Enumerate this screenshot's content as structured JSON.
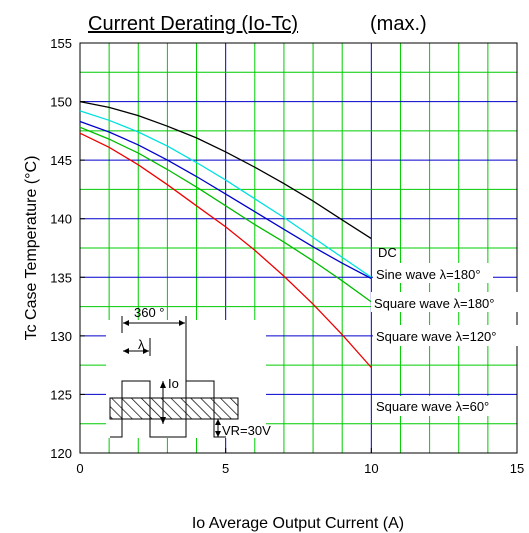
{
  "colors": {
    "background": "#ffffff",
    "grid_vertical": "#00cc00",
    "grid_horizontal": "#0000cc",
    "frame": "#000000",
    "hatch": "#000000"
  },
  "chart_data": {
    "type": "line",
    "title": "Current Derating  (Io-Tc)",
    "title_suffix": "(max.)",
    "xlabel": "Io   Average Output Current   (A)",
    "ylabel": "Tc   Case Temperature   (°C)",
    "xlim": [
      0,
      15
    ],
    "ylim": [
      120,
      155
    ],
    "x_ticks": [
      0,
      5,
      10,
      15
    ],
    "y_ticks": [
      120,
      125,
      130,
      135,
      140,
      145,
      150,
      155
    ],
    "grid": true,
    "series": [
      {
        "name": "DC",
        "color": "#000000",
        "x": [
          0,
          1,
          2,
          3,
          4,
          5,
          6,
          7,
          8,
          9,
          10
        ],
        "y": [
          150,
          149.5,
          148.8,
          147.9,
          146.9,
          145.7,
          144.4,
          143,
          141.5,
          139.9,
          138.3
        ]
      },
      {
        "name": "Sine wave λ=180°",
        "color": "#00e0e0",
        "x": [
          0,
          1,
          2,
          3,
          4,
          5,
          6,
          7,
          8,
          9,
          10
        ],
        "y": [
          149.2,
          148.4,
          147.4,
          146.2,
          144.8,
          143.3,
          141.7,
          140.1,
          138.4,
          136.7,
          135
        ]
      },
      {
        "name": "Square wave λ=180°",
        "color": "#0000cc",
        "x": [
          0,
          1,
          2,
          3,
          4,
          5,
          6,
          7,
          8,
          9,
          10
        ],
        "y": [
          148.3,
          147.4,
          146.3,
          145,
          143.6,
          142.1,
          140.6,
          139.1,
          137.6,
          136.2,
          134.9
        ]
      },
      {
        "name": "Square wave λ=120°",
        "color": "#00bb00",
        "x": [
          0,
          1,
          2,
          3,
          4,
          5,
          6,
          7,
          8,
          9,
          10
        ],
        "y": [
          147.8,
          146.8,
          145.6,
          144.2,
          142.7,
          141.1,
          139.5,
          138,
          136.4,
          134.7,
          132.9
        ]
      },
      {
        "name": "Square wave λ=60°",
        "color": "#ee0000",
        "x": [
          0,
          1,
          2,
          3,
          4,
          5,
          6,
          7,
          8,
          9,
          10
        ],
        "y": [
          147.3,
          146.1,
          144.6,
          142.9,
          141.1,
          139.3,
          137.3,
          135.1,
          132.7,
          130.1,
          127.3
        ]
      }
    ],
    "inset": {
      "angle_label": "360 °",
      "lambda_label": "λ",
      "current_label": "Io",
      "voltage_label": "VR=30V"
    }
  }
}
